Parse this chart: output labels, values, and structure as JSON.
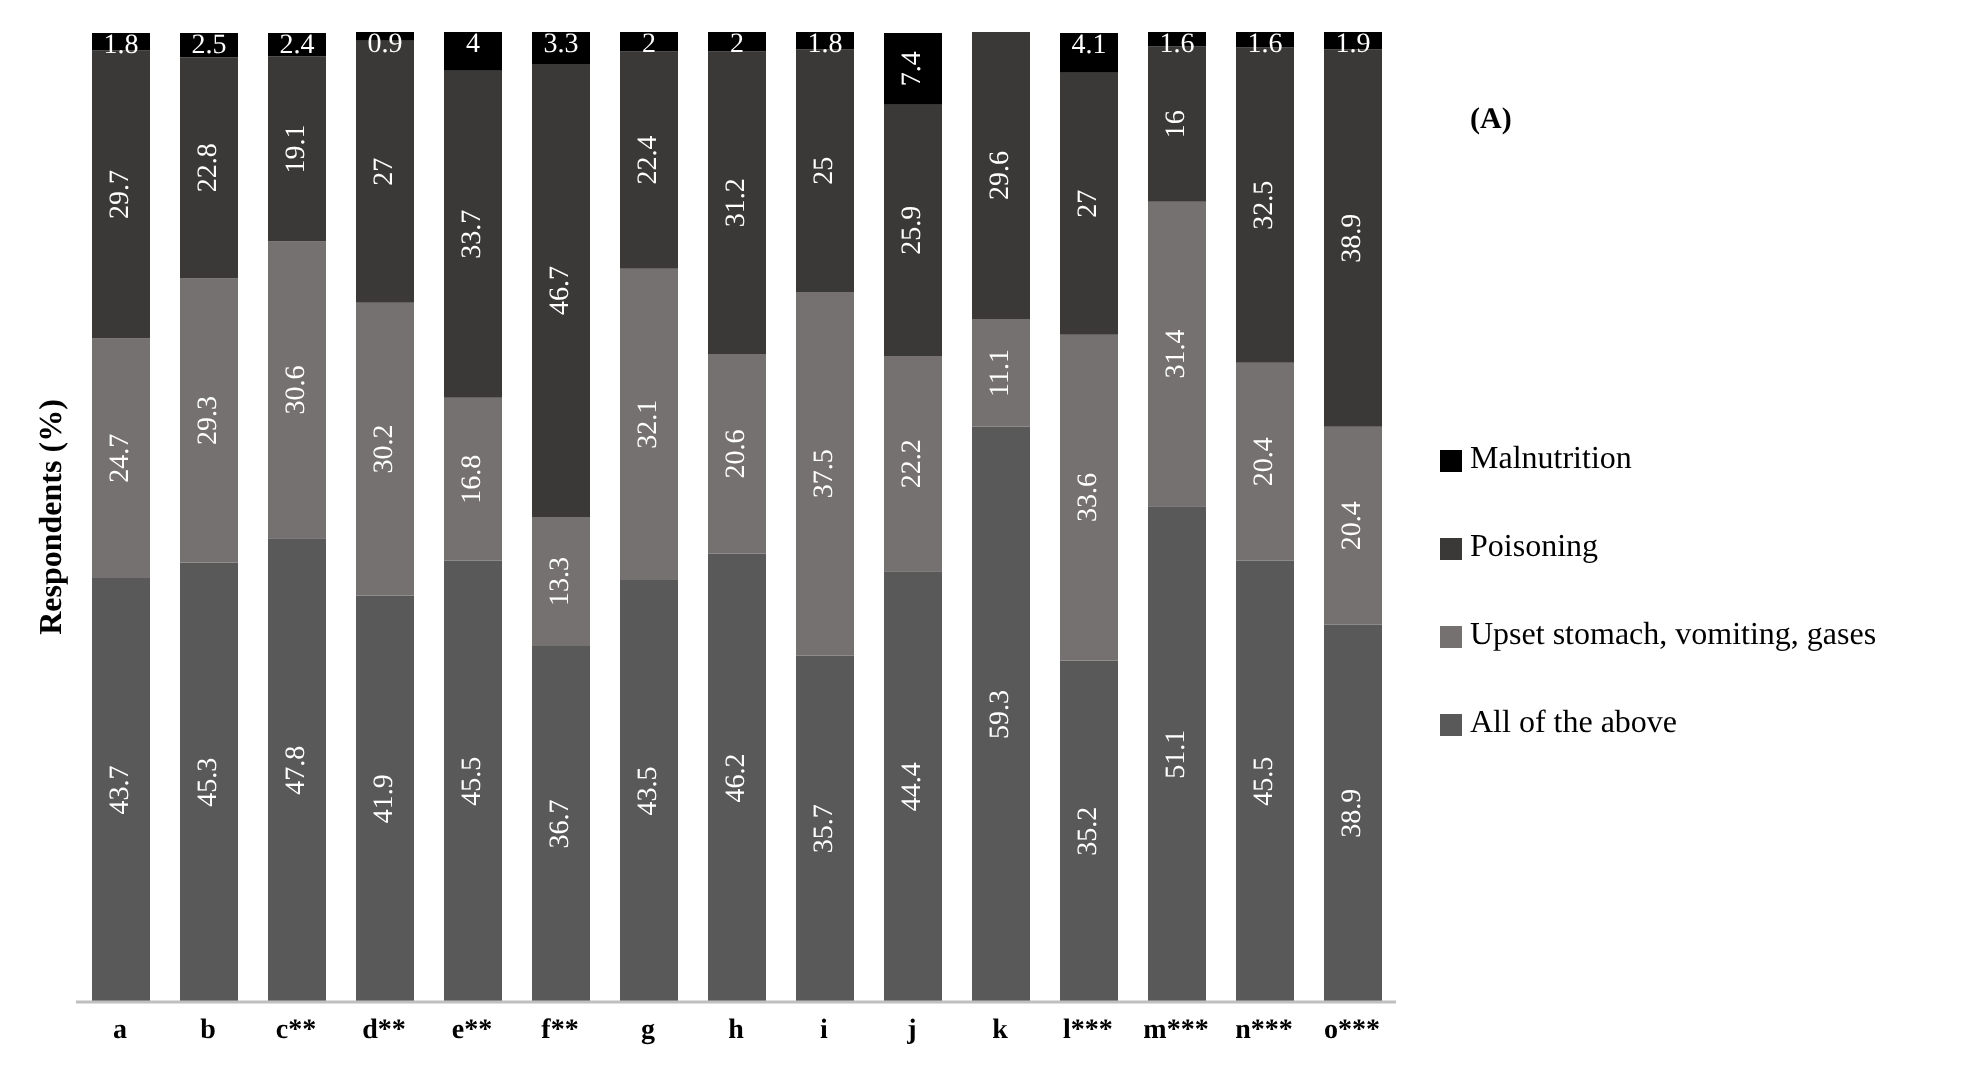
{
  "chart_data": {
    "type": "bar",
    "stacked": true,
    "ylabel": "Respondents (%)",
    "categories": [
      "a",
      "b",
      "c**",
      "d**",
      "e**",
      "f**",
      "g",
      "h",
      "i",
      "j",
      "k",
      "l***",
      "m***",
      "n***",
      "o***"
    ],
    "series": [
      {
        "name": "All of the above",
        "color": "#595959",
        "values": [
          43.7,
          45.3,
          47.8,
          41.9,
          45.5,
          36.7,
          43.5,
          46.2,
          35.7,
          44.4,
          59.3,
          35.2,
          51.1,
          45.5,
          38.9
        ]
      },
      {
        "name": "Upset stomach, vomiting, gases",
        "color": "#767171",
        "values": [
          24.7,
          29.3,
          30.6,
          30.2,
          16.8,
          13.3,
          32.1,
          20.6,
          37.5,
          22.2,
          11.1,
          33.6,
          31.4,
          20.4,
          20.4
        ]
      },
      {
        "name": "Poisoning",
        "color": "#3b3838",
        "values": [
          29.7,
          22.8,
          19.1,
          27,
          33.7,
          46.7,
          22.4,
          31.2,
          25,
          25.9,
          29.6,
          27,
          16,
          32.5,
          38.9
        ]
      },
      {
        "name": "Malnutrition",
        "color": "#000000",
        "values": [
          1.8,
          2.5,
          2.4,
          0.9,
          4,
          3.3,
          2,
          2,
          1.8,
          7.4,
          null,
          4.1,
          1.6,
          1.6,
          1.9
        ]
      }
    ],
    "ylim": [
      0,
      100
    ],
    "tick_labels": "x",
    "data_labels": true,
    "legend": "right",
    "grid": false,
    "annotations": [
      "(A)"
    ]
  }
}
